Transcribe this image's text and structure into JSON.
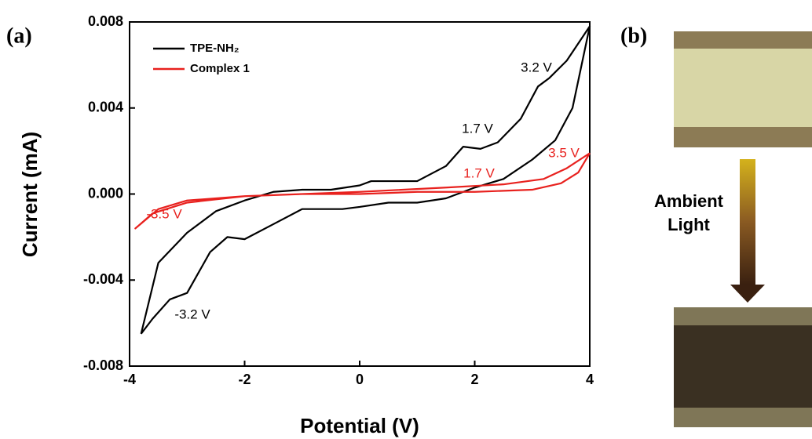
{
  "chart_data": {
    "type": "line",
    "panel_label": "(a)",
    "xlabel": "Potential (V)",
    "ylabel": "Current (mA)",
    "xlim": [
      -4,
      4
    ],
    "xticks": [
      -4,
      -2,
      0,
      2,
      4
    ],
    "ylim": [
      -0.008,
      0.008
    ],
    "yticks": [
      {
        "value": -0.008,
        "label": "-0.008"
      },
      {
        "value": -0.004,
        "label": "-0.004"
      },
      {
        "value": 0,
        "label": "0.000"
      },
      {
        "value": 0.004,
        "label": "0.004"
      },
      {
        "value": 0.008,
        "label": "0.008"
      }
    ],
    "legend": "upper left",
    "series": [
      {
        "name": "TPE-NH₂",
        "color": "#000000",
        "x": [
          -3.8,
          -3.5,
          -3,
          -2.5,
          -2,
          -1.5,
          -1,
          -0.5,
          0,
          0.2,
          0.5,
          1,
          1.5,
          1.8,
          2.1,
          2.4,
          2.8,
          3.1,
          3.3,
          3.6,
          4,
          3.7,
          3.4,
          3,
          2.5,
          2,
          1.5,
          1,
          0.5,
          0,
          -0.3,
          -1,
          -1.5,
          -2,
          -2.3,
          -2.6,
          -3,
          -3.3,
          -3.6,
          -3.8
        ],
        "values": [
          -0.0065,
          -0.0032,
          -0.0018,
          -0.0008,
          -0.0003,
          0.0001,
          0.0002,
          0.0002,
          0.0004,
          0.0006,
          0.0006,
          0.0006,
          0.0013,
          0.0022,
          0.0021,
          0.0024,
          0.0035,
          0.005,
          0.0054,
          0.0062,
          0.0078,
          0.004,
          0.0025,
          0.0016,
          0.0007,
          0.0003,
          -0.0002,
          -0.0004,
          -0.0004,
          -0.0006,
          -0.0007,
          -0.0007,
          -0.0014,
          -0.0021,
          -0.002,
          -0.0027,
          -0.0046,
          -0.0049,
          -0.0058,
          -0.0065
        ]
      },
      {
        "name": "Complex 1",
        "color": "#e8211e",
        "x": [
          4,
          3.6,
          3.2,
          2.5,
          1.5,
          0,
          -1,
          -2,
          -3,
          -3.5,
          -3.9,
          -3.6,
          -3,
          -2,
          -1,
          0,
          1,
          2,
          3,
          3.5,
          3.8,
          4
        ],
        "values": [
          0.0019,
          0.0012,
          0.0007,
          0.00045,
          0.0003,
          0.0001,
          0,
          -0.0001,
          -0.0003,
          -0.0007,
          -0.0016,
          -0.0009,
          -0.0004,
          -0.0001,
          0,
          0,
          0.0001,
          0.0001,
          0.0002,
          0.0005,
          0.001,
          0.0019
        ]
      }
    ],
    "annotations": [
      {
        "text": "3.2 V",
        "color": "#000000"
      },
      {
        "text": "1.7 V",
        "color": "#000000"
      },
      {
        "text": "-3.2 V",
        "color": "#000000"
      },
      {
        "text": "3.5 V",
        "color": "#e8211e"
      },
      {
        "text": "1.7 V",
        "color": "#e8211e"
      },
      {
        "text": "-3.5 V",
        "color": "#e8211e"
      }
    ]
  },
  "panel_b": {
    "label": "(b)",
    "arrow_text": [
      "Ambient",
      "Light"
    ]
  }
}
